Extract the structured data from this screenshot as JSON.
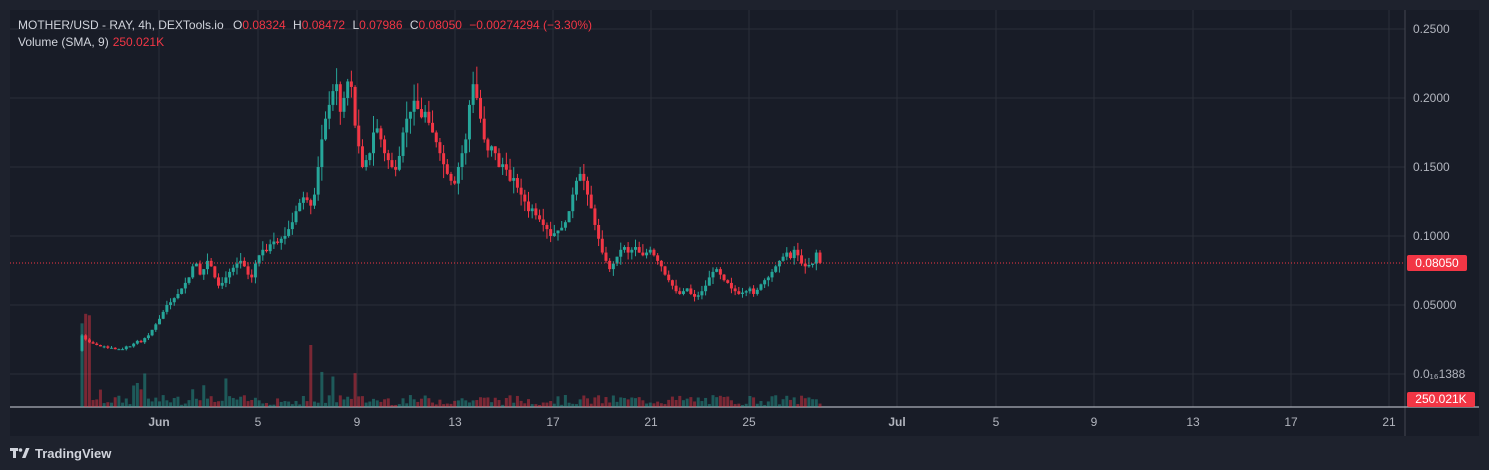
{
  "legend": {
    "symbol": "MOTHER/USD  - RAY, 4h, DEXTools.io",
    "o_label": "O",
    "o_value": "0.08324",
    "h_label": "H",
    "h_value": "0.08472",
    "l_label": "L",
    "l_value": "0.07986",
    "c_label": "C",
    "c_value": "0.08050",
    "change": "−0.00274294 (−3.30%)",
    "volume_label": "Volume (SMA, 9)",
    "volume_value": "250.021K"
  },
  "price_axis": {
    "ticks": [
      "0.2500",
      "0.2000",
      "0.1500",
      "0.1000",
      "0.05000",
      "0.0₁₆1388"
    ],
    "current_price": "0.08050",
    "current_volume": "250.021K"
  },
  "time_axis": {
    "ticks": [
      "Jun",
      "5",
      "9",
      "13",
      "17",
      "21",
      "25",
      "Jul",
      "5",
      "9",
      "13",
      "17",
      "21"
    ]
  },
  "branding": {
    "name": "TradingView"
  },
  "colors": {
    "up": "#26a69a",
    "down": "#f23645",
    "background": "#181c27",
    "grid": "#2a2e39"
  },
  "chart_data": {
    "type": "candlestick",
    "interval": "4h",
    "ylim": [
      0,
      0.26
    ],
    "current_price": 0.0805,
    "series_closes": [
      0.028,
      0.025,
      0.023,
      0.022,
      0.021,
      0.02,
      0.02,
      0.019,
      0.019,
      0.018,
      0.018,
      0.018,
      0.02,
      0.02,
      0.022,
      0.024,
      0.023,
      0.026,
      0.028,
      0.032,
      0.036,
      0.04,
      0.045,
      0.05,
      0.052,
      0.055,
      0.058,
      0.062,
      0.066,
      0.07,
      0.078,
      0.08,
      0.072,
      0.076,
      0.082,
      0.078,
      0.07,
      0.064,
      0.066,
      0.07,
      0.074,
      0.077,
      0.08,
      0.082,
      0.078,
      0.072,
      0.07,
      0.08,
      0.086,
      0.09,
      0.089,
      0.094,
      0.096,
      0.095,
      0.098,
      0.1,
      0.105,
      0.11,
      0.118,
      0.124,
      0.128,
      0.126,
      0.122,
      0.13,
      0.15,
      0.17,
      0.185,
      0.195,
      0.205,
      0.21,
      0.19,
      0.2,
      0.212,
      0.208,
      0.18,
      0.165,
      0.15,
      0.155,
      0.16,
      0.175,
      0.178,
      0.17,
      0.16,
      0.155,
      0.15,
      0.148,
      0.158,
      0.175,
      0.185,
      0.19,
      0.198,
      0.192,
      0.186,
      0.19,
      0.182,
      0.175,
      0.168,
      0.16,
      0.152,
      0.145,
      0.14,
      0.138,
      0.15,
      0.16,
      0.17,
      0.195,
      0.21,
      0.2,
      0.185,
      0.17,
      0.162,
      0.165,
      0.16,
      0.15,
      0.152,
      0.148,
      0.14,
      0.142,
      0.135,
      0.13,
      0.125,
      0.118,
      0.12,
      0.115,
      0.112,
      0.108,
      0.105,
      0.1,
      0.102,
      0.104,
      0.106,
      0.11,
      0.118,
      0.13,
      0.14,
      0.145,
      0.14,
      0.13,
      0.12,
      0.108,
      0.098,
      0.088,
      0.082,
      0.076,
      0.08,
      0.085,
      0.09,
      0.092,
      0.088,
      0.09,
      0.092,
      0.088,
      0.086,
      0.088,
      0.09,
      0.086,
      0.082,
      0.078,
      0.072,
      0.068,
      0.064,
      0.06,
      0.058,
      0.06,
      0.062,
      0.058,
      0.056,
      0.057,
      0.06,
      0.064,
      0.07,
      0.074,
      0.076,
      0.072,
      0.068,
      0.066,
      0.062,
      0.06,
      0.058,
      0.059,
      0.06,
      0.062,
      0.058,
      0.061,
      0.065,
      0.068,
      0.07,
      0.074,
      0.078,
      0.082,
      0.085,
      0.088,
      0.084,
      0.09,
      0.086,
      0.08,
      0.078,
      0.079,
      0.08,
      0.088,
      0.0805
    ]
  }
}
